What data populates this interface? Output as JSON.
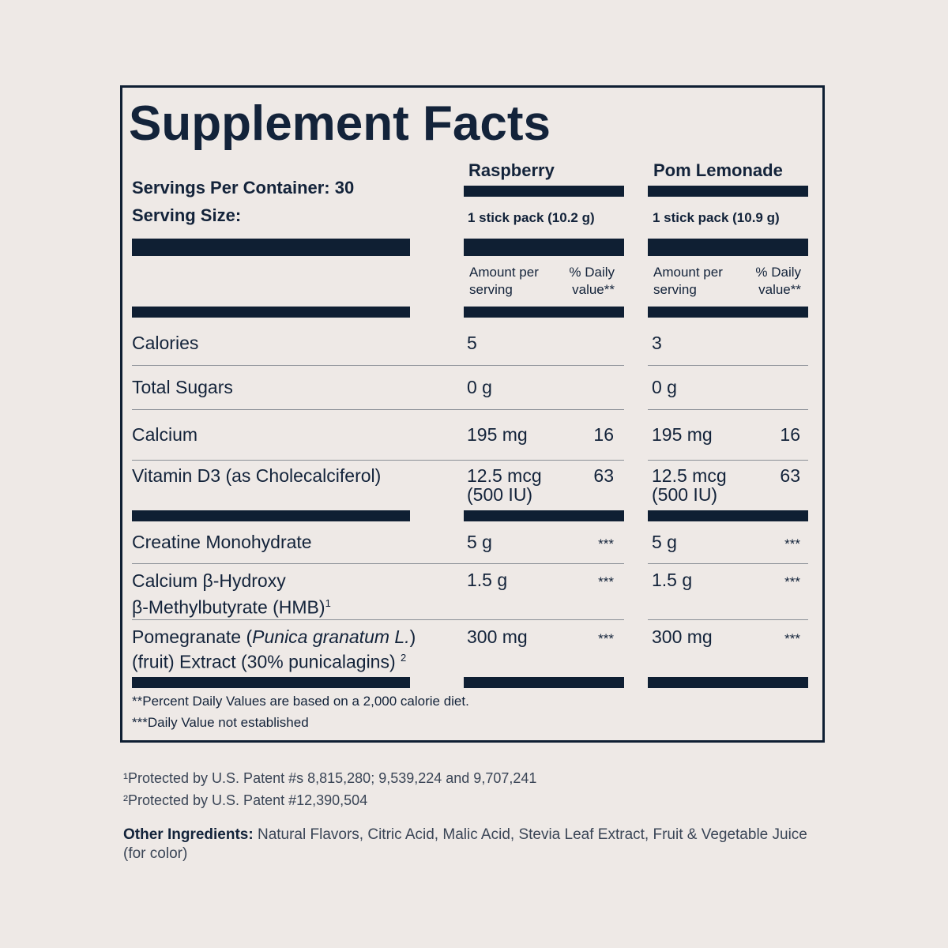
{
  "title": "Supplement Facts",
  "servings_per_container": "Servings Per Container: 30",
  "serving_size_label": "Serving Size:",
  "columns": [
    {
      "flavor": "Raspberry",
      "serving": "1 stick pack (10.2 g)",
      "amount_header": "Amount per serving",
      "dv_header": "% Daily value**"
    },
    {
      "flavor": "Pom Lemonade",
      "serving": "1 stick pack (10.9 g)",
      "amount_header": "Amount per serving",
      "dv_header": "% Daily value**"
    }
  ],
  "rows": [
    {
      "name": "Calories",
      "values": [
        {
          "amount": "5"
        },
        {
          "amount": "3"
        }
      ]
    },
    {
      "name": "Total Sugars",
      "values": [
        {
          "amount": "0 g"
        },
        {
          "amount": "0 g"
        }
      ]
    },
    {
      "name": "Calcium",
      "values": [
        {
          "amount": "195 mg",
          "dv": 16
        },
        {
          "amount": "195 mg",
          "dv": 16
        }
      ]
    },
    {
      "name": "Vitamin D3 (as Cholecalciferol)",
      "values": [
        {
          "amount": "12.5 mcg",
          "amount_line2": "(500 IU)",
          "dv": 63
        },
        {
          "amount": "12.5 mcg",
          "amount_line2": "(500 IU)",
          "dv": 63
        }
      ]
    },
    {
      "name": "Creatine Monohydrate",
      "values": [
        {
          "amount": "5 g",
          "dv": "***"
        },
        {
          "amount": "5 g",
          "dv": "***"
        }
      ]
    },
    {
      "name": "Calcium β-Hydroxy",
      "name_line2": "β-Methylbutyrate (HMB)",
      "note": "1",
      "values": [
        {
          "amount": "1.5 g",
          "dv": "***"
        },
        {
          "amount": "1.5 g",
          "dv": "***"
        }
      ]
    },
    {
      "name": "Pomegranate (",
      "name_italic": "Punica granatum L.",
      "name_close": ")",
      "name_line2": "(fruit) Extract (30% punicalagins)",
      "note": "2",
      "values": [
        {
          "amount": "300 mg",
          "dv": "***"
        },
        {
          "amount": "300 mg",
          "dv": "***"
        }
      ]
    }
  ],
  "footnotes": [
    "**Percent Daily Values are based on a 2,000 calorie diet.",
    "***Daily Value not established"
  ],
  "patents": [
    "¹Protected by U.S. Patent #s 8,815,280; 9,539,224 and 9,707,241",
    "²Protected by U.S. Patent #12,390,504"
  ],
  "other_ingredients": {
    "label": "Other Ingredients:",
    "text": "Natural Flavors, Citric Acid, Malic Acid, Stevia Leaf Extract, Fruit & Vegetable Juice (for color)"
  }
}
